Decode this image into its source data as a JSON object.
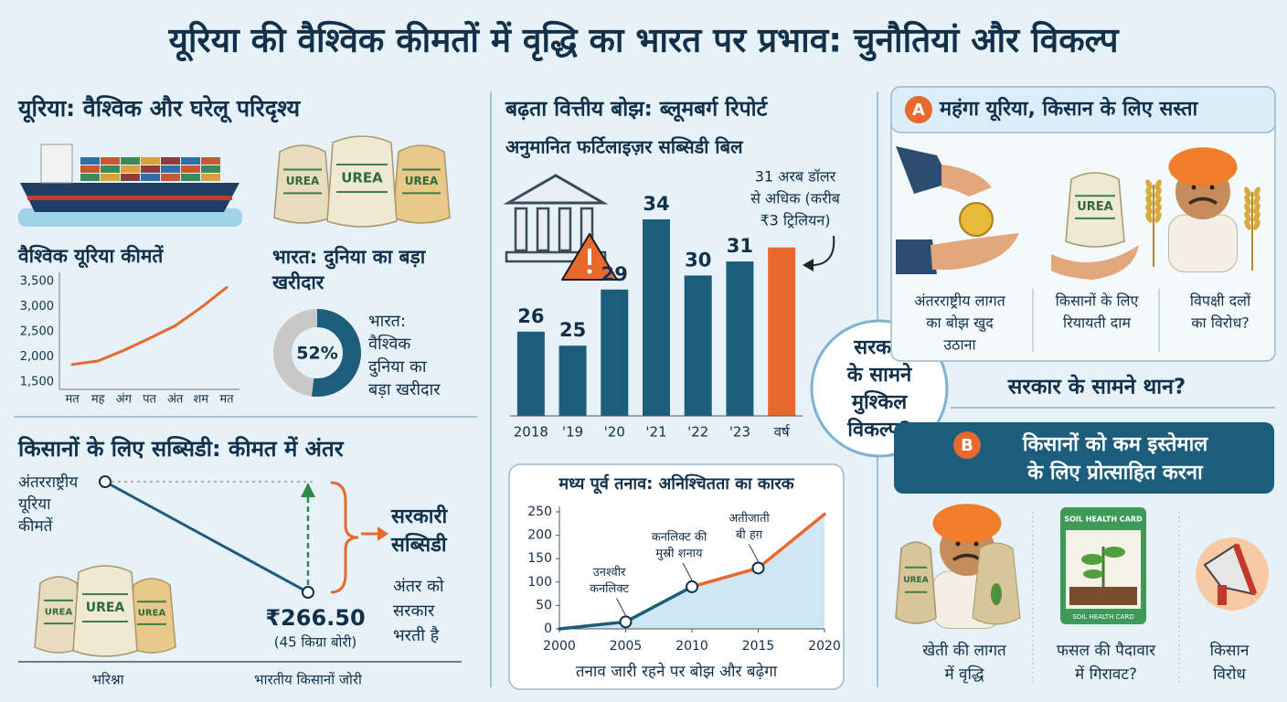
{
  "title": "यूरिया की वैश्विक कीमतों में वृद्धि का भारत पर प्रभाव: चुनौतियां और विकल्प",
  "scenario": {
    "heading": "यूरिया: वैश्विक और घरेलू परिदृश्य",
    "bag_labels": [
      "UREA",
      "UREA",
      "UREA"
    ]
  },
  "subsidy_gap": {
    "heading": "किसानों के लिए सब्सिडी: कीमत में अंतर",
    "intl_label": [
      "अंतरराष्ट्रीय",
      "यूरिया",
      "कीमतें"
    ],
    "gov_subsidy": [
      "सरकारी",
      "सब्सिडी"
    ],
    "gap_note": [
      "अंतर को",
      "सरकार",
      "भरती है"
    ],
    "price": "₹266.50",
    "bag_size": "(45 किग्रा बोरी)",
    "left_label": "भरिश्ना",
    "right_label": "भारतीय किसानों जोरी",
    "bag_labels": [
      "UREA",
      "UREA",
      "UREA"
    ]
  },
  "burden": {
    "heading": "बढ़ता वित्तीय बोझ: ब्लूमबर्ग रिपोर्ट"
  },
  "center": {
    "lines": [
      "सरकार",
      "के सामने",
      "मुश्किल",
      "विकल्प?"
    ]
  },
  "option_a": {
    "badge": "A",
    "heading": "महंगा यूरिया, किसान के लिए सस्ता",
    "bag_label": "UREA",
    "items": [
      [
        "अंतरराष्ट्रीय लागत",
        "का बोझ खुद",
        "उठाना"
      ],
      [
        "किसानों के लिए",
        "रियायती दाम"
      ],
      [
        "विपक्षी दलों",
        "का विरोध?"
      ]
    ]
  },
  "question": "सरकार के सामने थान?",
  "option_b": {
    "badge": "B",
    "heading": [
      "किसानों को कम इस्तेमाल",
      "के लिए प्रोत्साहित करना"
    ],
    "bag_label": "UREA",
    "card_labels": [
      "SOIL HEALTH CARD",
      "SOIL HEALTH CARD"
    ],
    "items": [
      [
        "खेती की लागत",
        "में वृद्धि"
      ],
      [
        "फसल की पैदावार",
        "में गिरावट?"
      ],
      [
        "किसान",
        "विरोध"
      ]
    ]
  },
  "chart_data": [
    {
      "type": "line",
      "title": "वैश्विक यूरिया कीमतें",
      "categories": [
        "मत",
        "मह",
        "अंग",
        "पत",
        "अंत",
        "शम",
        "मत"
      ],
      "values": [
        1850,
        1920,
        2130,
        2370,
        2620,
        2980,
        3380
      ],
      "color": "#e8692e",
      "ylim": [
        1500,
        3500
      ],
      "yticks": [
        {
          "value": 1500,
          "label": "1,500"
        },
        {
          "value": 2000,
          "label": "2,000"
        },
        {
          "value": 2500,
          "label": "2,500"
        },
        {
          "value": 3000,
          "label": "3,000"
        },
        {
          "value": 3500,
          "label": "3,500"
        }
      ],
      "grid": false
    },
    {
      "type": "pie",
      "title": [
        "भारत: दुनिया का बड़ा",
        "खरीदार"
      ],
      "values": [
        52
      ],
      "value_labels": [
        "52%"
      ],
      "label": [
        "भारत:",
        "वैश्विक",
        "दुनिया का",
        "बड़ा खरीदार"
      ],
      "color": "#1d5d7c",
      "rest_color": "#c8c8c8"
    },
    {
      "type": "bar",
      "title": "अनुमानित फर्टिलाइज़र सब्सिडी बिल",
      "categories": [
        "2018",
        "'19",
        "'20",
        "'21",
        "'22",
        "'23",
        "वर्ष"
      ],
      "values": [
        26,
        25,
        29,
        34,
        30,
        31,
        32
      ],
      "value_labels": [
        "26",
        "25",
        "29",
        "34",
        "30",
        "31",
        null
      ],
      "colors": [
        "#1d5d7c",
        "#1d5d7c",
        "#1d5d7c",
        "#1d5d7c",
        "#1d5d7c",
        "#1d5d7c",
        "#e8692e"
      ],
      "ylim": [
        20,
        34
      ],
      "annotation": [
        "31 अरब डॉलर",
        "से अधिक (करीब",
        "₹3 ट्रिलियन)"
      ]
    },
    {
      "type": "line",
      "title": "मध्य पूर्व तनाव: अनिश्चितता का कारक",
      "x": [
        2000,
        2005,
        2010,
        2015,
        2020
      ],
      "values": [
        0,
        15,
        90,
        130,
        245
      ],
      "point_labels": [
        null,
        [
          "उनश्वीर",
          "कनलिक्ट"
        ],
        [
          "कनलिक्ट की",
          "मुस्री शनाय"
        ],
        [
          "अतीजाती",
          "बी हग़"
        ],
        null
      ],
      "segment_colors": [
        "#1d5d7c",
        "#1d5d7c",
        "#e8692e",
        "#e8692e"
      ],
      "fill": "#cfe7f4",
      "xlim": [
        2000,
        2020
      ],
      "xticks": [
        2000,
        2005,
        2010,
        2015,
        2020
      ],
      "ylim": [
        0,
        250
      ],
      "yticks": [
        0,
        50,
        100,
        150,
        200,
        250
      ],
      "caption": "तनाव जारी रहने पर बोझ और बढ़ेगा"
    }
  ]
}
